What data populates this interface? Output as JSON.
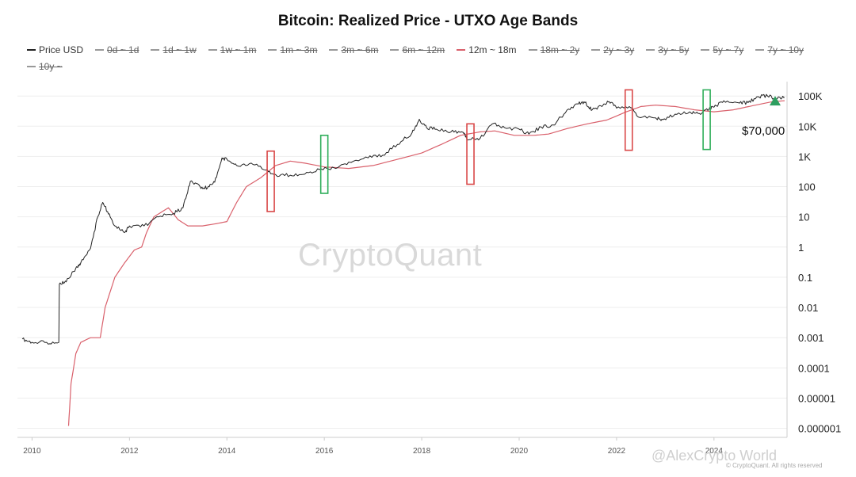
{
  "chart_data": {
    "type": "line",
    "title": "Bitcoin: Realized Price - UTXO Age Bands",
    "y_scale": "log",
    "ylim": [
      5e-07,
      300000
    ],
    "xlim": [
      2009.7,
      2025.5
    ],
    "y_ticks": [
      {
        "value": 100000,
        "label": "100K"
      },
      {
        "value": 10000,
        "label": "10K"
      },
      {
        "value": 1000,
        "label": "1K"
      },
      {
        "value": 100,
        "label": "100"
      },
      {
        "value": 10,
        "label": "10"
      },
      {
        "value": 1,
        "label": "1"
      },
      {
        "value": 0.1,
        "label": "0.1"
      },
      {
        "value": 0.01,
        "label": "0.01"
      },
      {
        "value": 0.001,
        "label": "0.001"
      },
      {
        "value": 0.0001,
        "label": "0.0001"
      },
      {
        "value": 1e-05,
        "label": "0.00001"
      },
      {
        "value": 1e-06,
        "label": "0.000001"
      }
    ],
    "x_ticks": [
      {
        "value": 2010,
        "label": "2010"
      },
      {
        "value": 2012,
        "label": "2012"
      },
      {
        "value": 2014,
        "label": "2014"
      },
      {
        "value": 2016,
        "label": "2016"
      },
      {
        "value": 2018,
        "label": "2018"
      },
      {
        "value": 2020,
        "label": "2020"
      },
      {
        "value": 2022,
        "label": "2022"
      },
      {
        "value": 2024,
        "label": "2024"
      }
    ],
    "grid": true,
    "legend_position": "top",
    "legend": [
      {
        "label": "Price USD",
        "active": true
      },
      {
        "label": "0d ~ 1d",
        "active": false
      },
      {
        "label": "1d ~ 1w",
        "active": false
      },
      {
        "label": "1w ~ 1m",
        "active": false
      },
      {
        "label": "1m ~ 3m",
        "active": false
      },
      {
        "label": "3m ~ 6m",
        "active": false
      },
      {
        "label": "6m ~ 12m",
        "active": false
      },
      {
        "label": "12m ~ 18m",
        "active": true
      },
      {
        "label": "18m ~ 2y",
        "active": false
      },
      {
        "label": "2y ~ 3y",
        "active": false
      },
      {
        "label": "3y ~ 5y",
        "active": false
      },
      {
        "label": "5y ~ 7y",
        "active": false
      },
      {
        "label": "7y ~ 10y",
        "active": false
      },
      {
        "label": "10y ~",
        "active": false
      }
    ],
    "series": [
      {
        "name": "Price USD",
        "color": "#222222",
        "points": [
          [
            2009.8,
            0.0009
          ],
          [
            2010.0,
            0.0007
          ],
          [
            2010.3,
            0.0007
          ],
          [
            2010.55,
            0.0007
          ],
          [
            2010.56,
            0.06
          ],
          [
            2010.7,
            0.07
          ],
          [
            2010.9,
            0.2
          ],
          [
            2011.0,
            0.3
          ],
          [
            2011.2,
            0.9
          ],
          [
            2011.35,
            10
          ],
          [
            2011.45,
            30
          ],
          [
            2011.55,
            15
          ],
          [
            2011.7,
            5
          ],
          [
            2011.9,
            3
          ],
          [
            2012.0,
            5
          ],
          [
            2012.3,
            5
          ],
          [
            2012.6,
            10
          ],
          [
            2012.9,
            13
          ],
          [
            2013.1,
            20
          ],
          [
            2013.25,
            150
          ],
          [
            2013.45,
            100
          ],
          [
            2013.6,
            90
          ],
          [
            2013.75,
            140
          ],
          [
            2013.9,
            900
          ],
          [
            2014.0,
            800
          ],
          [
            2014.2,
            500
          ],
          [
            2014.5,
            600
          ],
          [
            2014.8,
            350
          ],
          [
            2015.0,
            250
          ],
          [
            2015.3,
            240
          ],
          [
            2015.6,
            260
          ],
          [
            2015.9,
            370
          ],
          [
            2016.2,
            420
          ],
          [
            2016.5,
            650
          ],
          [
            2016.9,
            900
          ],
          [
            2017.2,
            1100
          ],
          [
            2017.5,
            2500
          ],
          [
            2017.8,
            6000
          ],
          [
            2017.95,
            17000
          ],
          [
            2018.1,
            9000
          ],
          [
            2018.3,
            8000
          ],
          [
            2018.6,
            6500
          ],
          [
            2018.85,
            6300
          ],
          [
            2018.95,
            3500
          ],
          [
            2019.2,
            4000
          ],
          [
            2019.45,
            12000
          ],
          [
            2019.7,
            9000
          ],
          [
            2020.0,
            8000
          ],
          [
            2020.2,
            5500
          ],
          [
            2020.45,
            9500
          ],
          [
            2020.7,
            11000
          ],
          [
            2020.95,
            28000
          ],
          [
            2021.2,
            55000
          ],
          [
            2021.35,
            60000
          ],
          [
            2021.5,
            35000
          ],
          [
            2021.7,
            45000
          ],
          [
            2021.85,
            65000
          ],
          [
            2022.0,
            40000
          ],
          [
            2022.3,
            40000
          ],
          [
            2022.45,
            20000
          ],
          [
            2022.8,
            19000
          ],
          [
            2022.95,
            16500
          ],
          [
            2023.2,
            25000
          ],
          [
            2023.5,
            30000
          ],
          [
            2023.7,
            26500
          ],
          [
            2023.9,
            37000
          ],
          [
            2024.0,
            43000
          ],
          [
            2024.2,
            70000
          ],
          [
            2024.5,
            60000
          ],
          [
            2024.7,
            60000
          ],
          [
            2024.9,
            95000
          ],
          [
            2025.1,
            100000
          ],
          [
            2025.3,
            82000
          ],
          [
            2025.45,
            90000
          ]
        ]
      },
      {
        "name": "12m ~ 18m",
        "color": "#d9606b",
        "points": [
          [
            2010.75,
            1.2e-06
          ],
          [
            2010.8,
            3e-05
          ],
          [
            2010.9,
            0.0003
          ],
          [
            2011.0,
            0.0007
          ],
          [
            2011.2,
            0.001
          ],
          [
            2011.4,
            0.001
          ],
          [
            2011.5,
            0.01
          ],
          [
            2011.7,
            0.1
          ],
          [
            2011.9,
            0.3
          ],
          [
            2012.1,
            0.8
          ],
          [
            2012.25,
            1
          ],
          [
            2012.35,
            3
          ],
          [
            2012.5,
            10
          ],
          [
            2012.8,
            20
          ],
          [
            2013.0,
            8
          ],
          [
            2013.2,
            5
          ],
          [
            2013.5,
            5
          ],
          [
            2013.8,
            6
          ],
          [
            2014.0,
            7
          ],
          [
            2014.2,
            30
          ],
          [
            2014.4,
            100
          ],
          [
            2014.7,
            200
          ],
          [
            2015.0,
            500
          ],
          [
            2015.3,
            700
          ],
          [
            2015.6,
            600
          ],
          [
            2016.0,
            450
          ],
          [
            2016.5,
            400
          ],
          [
            2017.0,
            500
          ],
          [
            2017.5,
            800
          ],
          [
            2018.0,
            1300
          ],
          [
            2018.4,
            2500
          ],
          [
            2018.8,
            5000
          ],
          [
            2019.2,
            6500
          ],
          [
            2019.5,
            7000
          ],
          [
            2019.9,
            5000
          ],
          [
            2020.3,
            5000
          ],
          [
            2020.6,
            5500
          ],
          [
            2021.0,
            8500
          ],
          [
            2021.4,
            12000
          ],
          [
            2021.8,
            16000
          ],
          [
            2022.2,
            30000
          ],
          [
            2022.5,
            45000
          ],
          [
            2022.8,
            50000
          ],
          [
            2023.2,
            45000
          ],
          [
            2023.6,
            35000
          ],
          [
            2024.0,
            30000
          ],
          [
            2024.4,
            35000
          ],
          [
            2024.8,
            48000
          ],
          [
            2025.2,
            65000
          ],
          [
            2025.45,
            70000
          ]
        ]
      }
    ],
    "highlight_boxes": [
      {
        "color": "#d94848",
        "x_center": 2014.9,
        "y_range": [
          15,
          1500
        ]
      },
      {
        "color": "#2fae5a",
        "x_center": 2016.0,
        "y_range": [
          60,
          5000
        ]
      },
      {
        "color": "#d94848",
        "x_center": 2019.0,
        "y_range": [
          120,
          12000
        ]
      },
      {
        "color": "#d94848",
        "x_center": 2022.25,
        "y_range": [
          1600,
          160000
        ]
      },
      {
        "color": "#2fae5a",
        "x_center": 2023.85,
        "y_range": [
          1700,
          160000
        ]
      }
    ],
    "annotation": {
      "label": "$70,000",
      "value": 70000,
      "marker": "triangle-up",
      "marker_color": "#2e9e5f"
    }
  },
  "watermark": "CryptoQuant",
  "attribution": "@AlexCrypto World",
  "copyright": "© CryptoQuant. All rights reserved"
}
